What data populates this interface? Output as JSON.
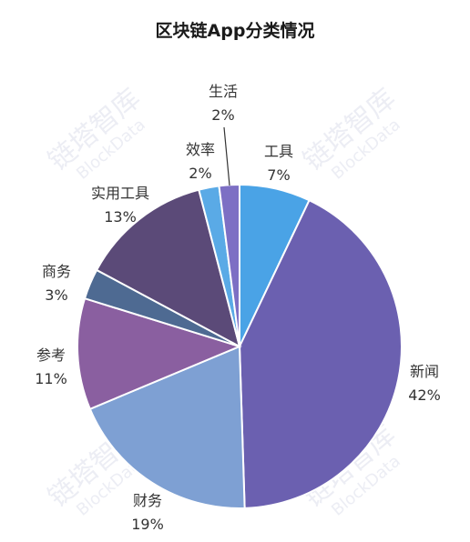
{
  "chart_data": {
    "type": "pie",
    "title": "区块链App分类情况",
    "slices": [
      {
        "label": "工具",
        "value": 7,
        "display": "7%",
        "color": "#4aa3e6"
      },
      {
        "label": "新闻",
        "value": 42,
        "display": "42%",
        "color": "#6b60b0"
      },
      {
        "label": "财务",
        "value": 19,
        "display": "19%",
        "color": "#7ea0d3"
      },
      {
        "label": "参考",
        "value": 11,
        "display": "11%",
        "color": "#8a5fa0"
      },
      {
        "label": "商务",
        "value": 3,
        "display": "3%",
        "color": "#4e6a92"
      },
      {
        "label": "实用工具",
        "value": 13,
        "display": "13%",
        "color": "#5b4a78"
      },
      {
        "label": "效率",
        "value": 2,
        "display": "2%",
        "color": "#5aaae6"
      },
      {
        "label": "生活",
        "value": 2,
        "display": "2%",
        "color": "#7d6fc4"
      }
    ],
    "slice_border_color": "#ffffff",
    "label_color": "#333333"
  },
  "watermark": {
    "text": "链塔智库",
    "sub": "BlockData",
    "color": "#c9cde0"
  }
}
